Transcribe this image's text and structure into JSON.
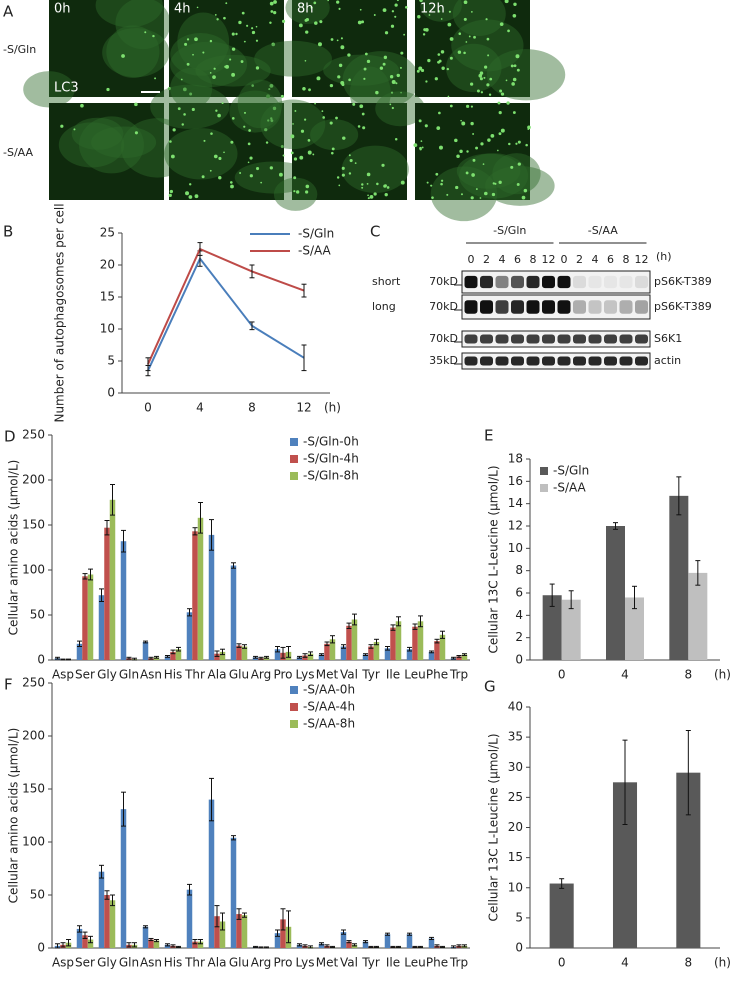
{
  "panel_a": {
    "panel": "A",
    "times": [
      "0h",
      "4h",
      "8h",
      "12h"
    ],
    "rows": [
      "-S/Gln",
      "-S/AA"
    ],
    "stain": "LC3"
  },
  "panel_c": {
    "panel": "C",
    "groups": [
      "-S/Gln",
      "-S/AA"
    ],
    "unit": "(h)",
    "lanes": [
      "0",
      "2",
      "4",
      "6",
      "8",
      "12",
      "0",
      "2",
      "4",
      "6",
      "8",
      "12"
    ],
    "rows": [
      {
        "exposure": "short",
        "mw": "70kD",
        "label": "pS6K-T389"
      },
      {
        "exposure": "long",
        "mw": "70kD",
        "label": "pS6K-T389"
      },
      {
        "mw": "70kD",
        "label": "S6K1"
      },
      {
        "mw": "35kD",
        "label": "actin"
      }
    ]
  },
  "chart_data": [
    {
      "panel": "B",
      "type": "line",
      "ylabel": "Number of autophagosomes per cell",
      "xlabel": "(h)",
      "categories": [
        "0",
        "4",
        "8",
        "12"
      ],
      "ylim": [
        0,
        25
      ],
      "yticks": [
        0,
        5,
        10,
        15,
        20,
        25
      ],
      "legend": "upper right",
      "series": [
        {
          "name": "-S/Gln",
          "color": "#4a7ebb",
          "values": [
            3.5,
            21,
            10.5,
            5.5
          ],
          "errors": [
            0.8,
            1.2,
            0.6,
            2.0
          ]
        },
        {
          "name": "-S/AA",
          "color": "#be4b48",
          "values": [
            4.5,
            22.5,
            19,
            16
          ],
          "errors": [
            1.0,
            1.0,
            1.0,
            1.0
          ]
        }
      ]
    },
    {
      "panel": "D",
      "type": "bar",
      "ylabel": "Cellular amino acids (μmol/L)",
      "categories": [
        "Asp",
        "Ser",
        "Gly",
        "Gln",
        "Asn",
        "His",
        "Thr",
        "Ala",
        "Glu",
        "Arg",
        "Pro",
        "Lys",
        "Met",
        "Val",
        "Tyr",
        "Ile",
        "Leu",
        "Phe",
        "Trp"
      ],
      "ylim": [
        0,
        250
      ],
      "yticks": [
        0,
        50,
        100,
        150,
        200,
        250
      ],
      "legend": "upper center",
      "series": [
        {
          "name": "-S/Gln-0h",
          "color": "#4f81bd",
          "values": [
            2,
            18,
            72,
            132,
            20,
            4,
            53,
            139,
            105,
            3,
            12,
            3,
            6,
            15,
            6,
            13,
            12,
            9,
            2
          ],
          "errors": [
            1,
            3,
            7,
            12,
            1,
            1,
            4,
            17,
            3,
            1,
            3,
            1,
            1,
            2,
            1,
            2,
            2,
            1,
            1
          ]
        },
        {
          "name": "-S/Gln-4h",
          "color": "#c0504d",
          "values": [
            0.5,
            93,
            147,
            2,
            2,
            9,
            143,
            7,
            16,
            2,
            8,
            5,
            18,
            38,
            15,
            36,
            37,
            21,
            4
          ],
          "errors": [
            0.5,
            3,
            8,
            1,
            1,
            2,
            4,
            3,
            2,
            1,
            6,
            2,
            2,
            3,
            2,
            3,
            3,
            2,
            1
          ]
        },
        {
          "name": "-S/Gln-8h",
          "color": "#9bbb59",
          "values": [
            0.5,
            95,
            178,
            1,
            3,
            12,
            158,
            9,
            15,
            3,
            9,
            7,
            23,
            45,
            20,
            43,
            43,
            28,
            6
          ],
          "errors": [
            0.5,
            6,
            17,
            1,
            1,
            2,
            17,
            3,
            2,
            1,
            6,
            2,
            4,
            6,
            3,
            5,
            6,
            4,
            1
          ]
        }
      ]
    },
    {
      "panel": "E",
      "type": "bar",
      "ylabel": "Cellular 13C L-Leucine (μmol/L)",
      "xlabel": "(h)",
      "categories": [
        "0",
        "4",
        "8"
      ],
      "ylim": [
        0,
        18
      ],
      "yticks": [
        0,
        2,
        4,
        6,
        8,
        10,
        12,
        14,
        16,
        18
      ],
      "legend": "upper left",
      "series": [
        {
          "name": "-S/Gln",
          "color": "#595959",
          "values": [
            5.8,
            12.0,
            14.7
          ],
          "errors": [
            1.0,
            0.3,
            1.7
          ]
        },
        {
          "name": "-S/AA",
          "color": "#bfbfbf",
          "values": [
            5.4,
            5.6,
            7.8
          ],
          "errors": [
            0.8,
            1.0,
            1.1
          ]
        }
      ]
    },
    {
      "panel": "F",
      "type": "bar",
      "ylabel": "Cellular amino acids (μmol/L)",
      "categories": [
        "Asp",
        "Ser",
        "Gly",
        "Gln",
        "Asn",
        "His",
        "Thr",
        "Ala",
        "Glu",
        "Arg",
        "Pro",
        "Lys",
        "Met",
        "Val",
        "Tyr",
        "Ile",
        "Leu",
        "Phe",
        "Trp"
      ],
      "ylim": [
        0,
        250
      ],
      "yticks": [
        0,
        50,
        100,
        150,
        200,
        250
      ],
      "legend": "upper center",
      "series": [
        {
          "name": "-S/AA-0h",
          "color": "#4f81bd",
          "values": [
            2,
            18,
            72,
            131,
            20,
            3,
            55,
            140,
            104,
            1,
            14,
            3,
            4,
            15,
            6,
            13,
            13,
            9,
            1
          ],
          "errors": [
            2,
            3,
            6,
            16,
            1,
            1,
            5,
            20,
            2,
            0.5,
            3,
            1,
            1,
            2,
            1,
            1,
            1,
            1,
            1
          ]
        },
        {
          "name": "-S/AA-4h",
          "color": "#c0504d",
          "values": [
            3,
            12,
            50,
            3,
            8,
            2,
            6,
            30,
            32,
            0.5,
            27,
            2,
            2,
            6,
            1,
            1,
            1,
            2,
            2
          ],
          "errors": [
            2,
            3,
            4,
            2,
            1,
            1,
            2,
            10,
            5,
            0.5,
            10,
            1,
            1,
            1,
            0.5,
            0.5,
            0.5,
            1,
            1
          ]
        },
        {
          "name": "-S/AA-8h",
          "color": "#9bbb59",
          "values": [
            5,
            8,
            45,
            3,
            7,
            1,
            6,
            25,
            31,
            0.5,
            20,
            1,
            1,
            3,
            1,
            1,
            1,
            1,
            2
          ],
          "errors": [
            3,
            3,
            5,
            2,
            1,
            0.5,
            2,
            8,
            2,
            0.5,
            15,
            1,
            0.5,
            1,
            0.5,
            0.5,
            0.5,
            0.5,
            1
          ]
        }
      ]
    },
    {
      "panel": "G",
      "type": "bar",
      "ylabel": "Cellular 13C L-Leucine (μmol/L)",
      "xlabel": "(h)",
      "categories": [
        "0",
        "4",
        "8"
      ],
      "ylim": [
        0,
        40
      ],
      "yticks": [
        0,
        5,
        10,
        15,
        20,
        25,
        30,
        35,
        40
      ],
      "series": [
        {
          "color": "#595959",
          "values": [
            10.7,
            27.5,
            29.1
          ],
          "errors": [
            0.8,
            7,
            7
          ]
        }
      ]
    }
  ]
}
